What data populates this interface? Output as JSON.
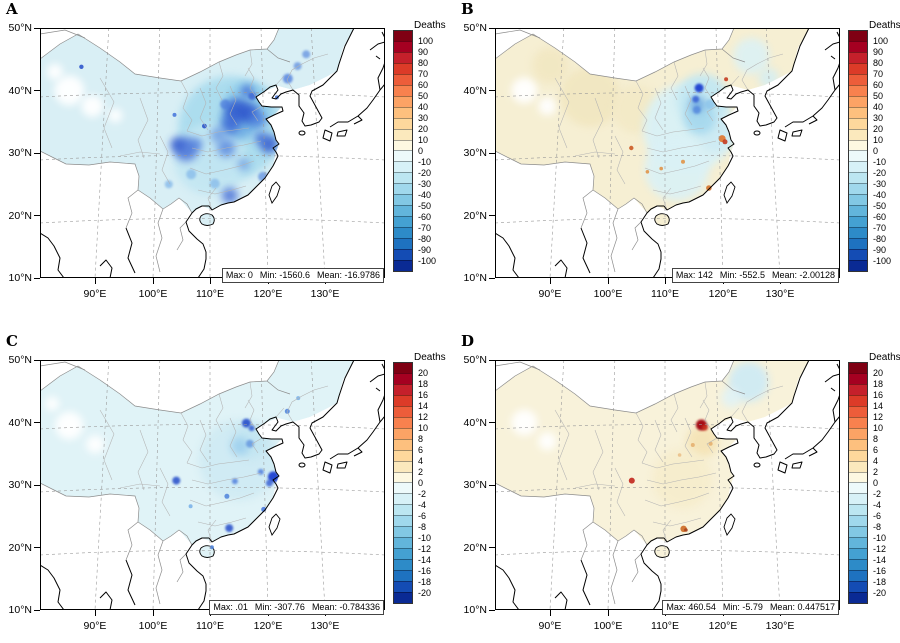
{
  "panels": [
    {
      "label": "A",
      "y_ticks": [
        "50°N",
        "40°N",
        "30°N",
        "20°N",
        "10°N"
      ],
      "x_ticks": [
        "90°E",
        "100°E",
        "110°E",
        "120°E",
        "130°E"
      ],
      "stats": [
        "Max: 0",
        "Min: -1560.6",
        "Mean: -16.9786"
      ],
      "colorbar": {
        "title": "Deaths",
        "ticks": [
          "100",
          "90",
          "80",
          "70",
          "60",
          "50",
          "40",
          "30",
          "20",
          "10",
          "0",
          "-10",
          "-20",
          "-30",
          "-40",
          "-50",
          "-60",
          "-70",
          "-80",
          "-90",
          "-100"
        ]
      },
      "field": {
        "base": "#d9eff5",
        "gaps": [
          [
            85.5,
            40,
            15
          ],
          [
            89.5,
            37.5,
            11
          ],
          [
            83,
            43,
            8
          ],
          [
            93.5,
            36,
            7
          ]
        ],
        "blobs": [
          [
            113.5,
            34,
            52,
            "#aadcee",
            0.95
          ],
          [
            110,
            29,
            36,
            "#c2e6f2",
            0.9
          ],
          [
            116.5,
            37.5,
            24,
            "#8fccea",
            0.9
          ],
          [
            115,
            35,
            18,
            "#66a6e2",
            0.75
          ],
          [
            114.6,
            36.8,
            12,
            "#2d55cc",
            0.8
          ],
          [
            116.8,
            36.4,
            10,
            "#2d55cc",
            0.75
          ],
          [
            113.6,
            34.6,
            9,
            "#3a63d4",
            0.75
          ],
          [
            118.4,
            35.3,
            8,
            "#4a79dc",
            0.7
          ],
          [
            105.8,
            30.6,
            12,
            "#3a63d4",
            0.75
          ],
          [
            104.3,
            31.4,
            7,
            "#2d55cc",
            0.75
          ],
          [
            107.6,
            31.4,
            6,
            "#4a79dc",
            0.7
          ],
          [
            112.8,
            30.8,
            9,
            "#4a79dc",
            0.7
          ],
          [
            111.4,
            32.9,
            8,
            "#5a8ade",
            0.65
          ],
          [
            120.2,
            31.4,
            9,
            "#2d55cc",
            0.8
          ],
          [
            118.8,
            32.4,
            6,
            "#3a63d4",
            0.75
          ],
          [
            113.4,
            23.2,
            8,
            "#3a63d4",
            0.75
          ],
          [
            115.8,
            28.2,
            6,
            "#5a8ade",
            0.65
          ],
          [
            119.2,
            26.2,
            5,
            "#5a8ade",
            0.7
          ],
          [
            110.8,
            25.1,
            5,
            "#7cb2e8",
            0.65
          ],
          [
            106.7,
            26.6,
            5,
            "#7cb2e8",
            0.65
          ],
          [
            102.8,
            25,
            4,
            "#7cb2e8",
            0.7
          ],
          [
            123.5,
            41.9,
            5,
            "#4a79dc",
            0.75
          ],
          [
            125.2,
            43.9,
            4,
            "#5a8ade",
            0.7
          ],
          [
            126.7,
            45.8,
            4,
            "#5a8ade",
            0.7
          ],
          [
            112.6,
            37.8,
            5,
            "#4a79dc",
            0.7
          ],
          [
            116.4,
            39.9,
            6,
            "#3a63d4",
            0.8
          ],
          [
            117.3,
            39.1,
            4,
            "#3a63d4",
            0.8
          ]
        ],
        "dots": [
          [
            87.6,
            43.8,
            2.2,
            "#2d55cc"
          ],
          [
            103.8,
            36.1,
            2,
            "#4a79dc"
          ],
          [
            121.6,
            38.9,
            2,
            "#4a79dc"
          ],
          [
            109,
            34.3,
            2.4,
            "#2d55cc"
          ]
        ]
      }
    },
    {
      "label": "B",
      "y_ticks": [
        "50°N",
        "40°N",
        "30°N",
        "20°N",
        "10°N"
      ],
      "x_ticks": [
        "90°E",
        "100°E",
        "110°E",
        "120°E",
        "130°E"
      ],
      "stats": [
        "Max: 142",
        "Min: -552.5",
        "Mean: -2.00128"
      ],
      "colorbar": {
        "title": "Deaths",
        "ticks": [
          "100",
          "90",
          "80",
          "70",
          "60",
          "50",
          "40",
          "30",
          "20",
          "10",
          "0",
          "-10",
          "-20",
          "-30",
          "-40",
          "-50",
          "-60",
          "-70",
          "-80",
          "-90",
          "-100"
        ]
      },
      "field": {
        "base": "#f6efd3",
        "gaps": [
          [
            85.5,
            40,
            13
          ],
          [
            89.5,
            37.5,
            9
          ]
        ],
        "blobs": [
          [
            97,
            39,
            30,
            "#f1e6c0",
            0.9
          ],
          [
            105,
            37,
            24,
            "#f3e9c6",
            0.9
          ],
          [
            90,
            44,
            18,
            "#f1e6c0",
            0.8
          ],
          [
            114,
            34,
            45,
            "#d9f1f6",
            0.95
          ],
          [
            116.5,
            38.5,
            26,
            "#c2e7f2",
            0.95
          ],
          [
            112,
            27.5,
            32,
            "#daf1f6",
            0.9
          ],
          [
            119,
            33,
            18,
            "#cdeaf3",
            0.9
          ],
          [
            125,
            45.5,
            18,
            "#daf1f6",
            0.85
          ],
          [
            128,
            42,
            10,
            "#d2eef5",
            0.8
          ],
          [
            116,
            35.5,
            16,
            "#a5d8ee",
            0.9
          ],
          [
            115.6,
            37.8,
            8,
            "#6fa8e0",
            0.85
          ],
          [
            117.8,
            37.8,
            5,
            "#8cc4ea",
            0.8
          ],
          [
            115.9,
            40.4,
            4.5,
            "#1d3fd0",
            0.95
          ],
          [
            115.3,
            38.6,
            3.5,
            "#3a63d4",
            0.9
          ],
          [
            115.5,
            36.9,
            4,
            "#5588dd",
            0.85
          ]
        ],
        "dots": [
          [
            119.9,
            32.3,
            3.5,
            "#e0762e"
          ],
          [
            120.4,
            31.8,
            2.5,
            "#c43c20"
          ],
          [
            104.1,
            30.8,
            2.2,
            "#cc5a24"
          ],
          [
            113.1,
            28.6,
            2,
            "#e09448"
          ],
          [
            117.6,
            24.4,
            2.8,
            "#d4722c"
          ],
          [
            120.6,
            41.8,
            2,
            "#c43c20"
          ],
          [
            109.3,
            27.5,
            1.8,
            "#e09448"
          ],
          [
            106.9,
            27,
            1.8,
            "#e09448"
          ]
        ]
      }
    },
    {
      "label": "C",
      "y_ticks": [
        "50°N",
        "40°N",
        "30°N",
        "20°N",
        "10°N"
      ],
      "x_ticks": [
        "90°E",
        "100°E",
        "110°E",
        "120°E",
        "130°E"
      ],
      "stats": [
        "Max: .01",
        "Min: -307.76",
        "Mean: -0.784336"
      ],
      "colorbar": {
        "title": "Deaths",
        "ticks": [
          "20",
          "18",
          "16",
          "14",
          "12",
          "10",
          "8",
          "6",
          "4",
          "2",
          "0",
          "-2",
          "-4",
          "-6",
          "-8",
          "-10",
          "-12",
          "-14",
          "-16",
          "-18",
          "-20"
        ]
      },
      "field": {
        "base": "#e0f3f7",
        "gaps": [
          [
            85.5,
            39.5,
            14
          ],
          [
            90,
            36.5,
            9
          ],
          [
            82.5,
            43,
            7
          ]
        ],
        "blobs": [
          [
            115,
            34,
            40,
            "#cfeaf3",
            0.9
          ],
          [
            117,
            37,
            18,
            "#c2e5f1",
            0.85
          ],
          [
            115.2,
            36.2,
            9,
            "#9ccfee",
            0.85
          ],
          [
            116.3,
            39.9,
            4.5,
            "#2d55cc",
            0.95
          ],
          [
            117.2,
            39.1,
            3,
            "#3a63d4",
            0.9
          ],
          [
            116.9,
            36.6,
            4,
            "#6699e0",
            0.85
          ],
          [
            121,
            31.3,
            5.5,
            "#1d3fd0",
            0.95
          ],
          [
            120.3,
            30.3,
            3.5,
            "#3a63d4",
            0.85
          ],
          [
            118.8,
            32.1,
            3,
            "#4a79dc",
            0.8
          ],
          [
            104.1,
            30.7,
            4,
            "#2d55cc",
            0.9
          ],
          [
            113.3,
            23.1,
            4,
            "#2d55cc",
            0.9
          ],
          [
            114.3,
            30.6,
            3,
            "#4a79dc",
            0.8
          ]
        ],
        "dots": [
          [
            112.9,
            28.2,
            2.5,
            "#5588dd"
          ],
          [
            119.3,
            26.1,
            2.5,
            "#4a79dc"
          ],
          [
            123.4,
            41.8,
            2.5,
            "#5588dd"
          ],
          [
            125.3,
            43.9,
            2,
            "#7cb2e8"
          ],
          [
            106.6,
            26.6,
            2,
            "#7cb2e8"
          ],
          [
            110.3,
            20.05,
            2,
            "#5588dd"
          ]
        ]
      }
    },
    {
      "label": "D",
      "y_ticks": [
        "50°N",
        "40°N",
        "30°N",
        "20°N",
        "10°N"
      ],
      "x_ticks": [
        "90°E",
        "100°E",
        "110°E",
        "120°E",
        "130°E"
      ],
      "stats": [
        "Max: 460.54",
        "Min: -5.79",
        "Mean: 0.447517"
      ],
      "colorbar": {
        "title": "Deaths",
        "ticks": [
          "20",
          "18",
          "16",
          "14",
          "12",
          "10",
          "8",
          "6",
          "4",
          "2",
          "0",
          "-2",
          "-4",
          "-6",
          "-8",
          "-10",
          "-12",
          "-14",
          "-16",
          "-18",
          "-20"
        ]
      },
      "field": {
        "base": "#f8f2da",
        "gaps": [
          [
            85.5,
            40,
            13
          ],
          [
            89.5,
            37,
            9
          ]
        ],
        "blobs": [
          [
            124.5,
            46.5,
            20,
            "#cfeaf4",
            0.95
          ],
          [
            121.5,
            44,
            10,
            "#dff2f7",
            0.85
          ],
          [
            116.5,
            37,
            16,
            "#f4e2b2",
            0.85
          ],
          [
            113,
            31,
            30,
            "#f6ecca",
            0.8
          ],
          [
            116.3,
            39.6,
            5.5,
            "#a50a14",
            1
          ],
          [
            116.9,
            39.2,
            3,
            "#c8301e",
            0.9
          ]
        ],
        "dots": [
          [
            104.2,
            30.7,
            3,
            "#c1261c"
          ],
          [
            113.2,
            23,
            3.2,
            "#cc6a24"
          ],
          [
            113.6,
            22.8,
            1.8,
            "#a8401a"
          ],
          [
            114.8,
            36.4,
            2,
            "#e6b070"
          ],
          [
            117.9,
            36.6,
            2,
            "#e6b070"
          ],
          [
            112.5,
            34.8,
            1.8,
            "#eac08a"
          ]
        ]
      }
    }
  ],
  "colorbar_colors": [
    "#7f0013",
    "#a50021",
    "#c5202b",
    "#dc3b28",
    "#ed5d3a",
    "#f8814e",
    "#fca365",
    "#fdc07e",
    "#fed89c",
    "#fbe9bd",
    "#fdf8e1",
    "#edfafb",
    "#d7f1f7",
    "#bce6f1",
    "#a0d8ec",
    "#82c8e4",
    "#62b5db",
    "#44a1d2",
    "#2d8bc8",
    "#1e72c0",
    "#144cb4",
    "#0a2a94"
  ],
  "map_colors": {
    "coast": "#000000",
    "country_border": "#8c8c8c",
    "province_border": "#b3b3b3",
    "graticule": "#999999",
    "ocean": "#ffffff"
  }
}
